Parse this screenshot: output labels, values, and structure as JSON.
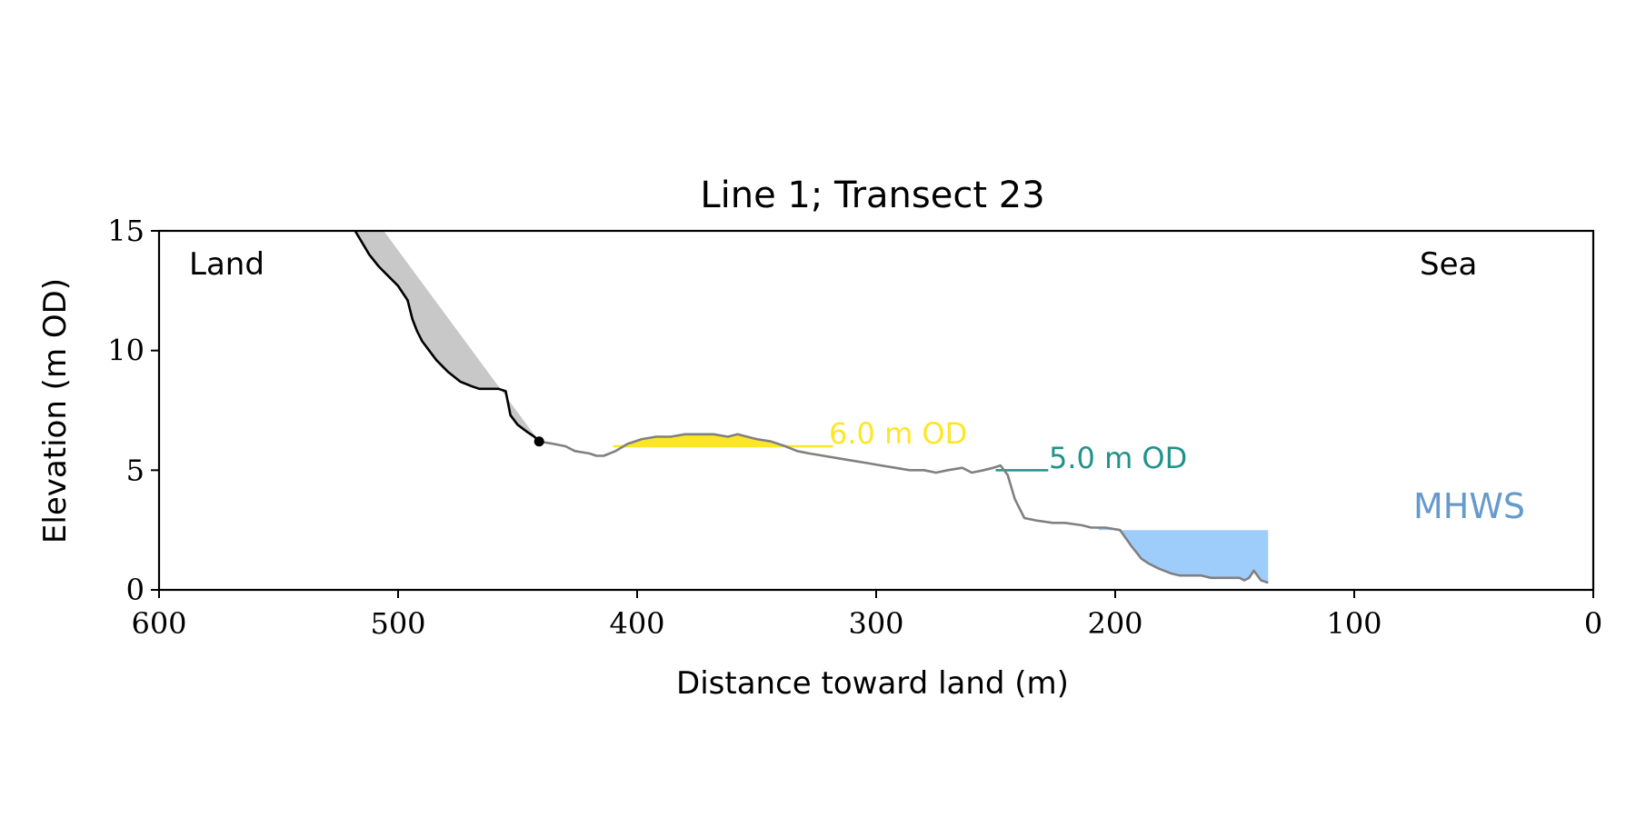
{
  "chart_data": {
    "type": "line",
    "title": "Line 1; Transect 23",
    "xlabel": "Distance toward land (m)",
    "ylabel": "Elevation (m OD)",
    "xlim": [
      600,
      0
    ],
    "ylim": [
      0,
      15
    ],
    "x_reversed": true,
    "xticks": [
      600,
      500,
      400,
      300,
      200,
      100,
      0
    ],
    "yticks": [
      0,
      5,
      10,
      15
    ],
    "grid": false,
    "annotations": {
      "land": "Land",
      "sea": "Sea",
      "mhws": "MHWS",
      "od6": "6.0 m OD",
      "od5": "5.0 m OD"
    },
    "colors": {
      "cliff_line": "#000000",
      "profile_line": "#808080",
      "cliff_fill": "#c8c8c8",
      "yellow": "#fde725",
      "teal": "#21918c",
      "mhws_fill": "#9fcdfb",
      "mhws_text": "#6699cc"
    },
    "cliff_profile": {
      "x": [
        518,
        512,
        508,
        505,
        500,
        496,
        494,
        492,
        490,
        487,
        484,
        479,
        474,
        469,
        466,
        462,
        458,
        455,
        453,
        450,
        446,
        443,
        441
      ],
      "y": [
        15.0,
        14.0,
        13.5,
        13.2,
        12.7,
        12.1,
        11.3,
        10.8,
        10.4,
        10.0,
        9.6,
        9.1,
        8.7,
        8.5,
        8.4,
        8.4,
        8.4,
        8.3,
        7.3,
        6.9,
        6.6,
        6.4,
        6.2
      ]
    },
    "cliff_toe": {
      "x": 441,
      "y": 6.2
    },
    "cliff_top_line": {
      "x": [
        506,
        441
      ],
      "y": [
        15.0,
        6.2
      ]
    },
    "beach_profile": {
      "x": [
        441,
        435,
        430,
        426,
        420,
        417,
        414,
        409,
        404,
        398,
        392,
        386,
        380,
        374,
        368,
        362,
        358,
        354,
        350,
        344,
        338,
        333,
        328,
        322,
        316,
        310,
        304,
        298,
        292,
        286,
        280,
        275,
        270,
        264,
        260,
        255,
        251,
        248,
        245,
        242,
        238,
        233,
        226,
        221,
        214,
        210,
        204,
        198,
        193,
        189,
        186,
        182,
        177,
        173,
        169,
        164,
        160,
        156,
        152,
        148,
        146,
        144,
        142,
        139,
        136
      ],
      "y": [
        6.2,
        6.1,
        6.0,
        5.8,
        5.7,
        5.6,
        5.6,
        5.8,
        6.1,
        6.3,
        6.4,
        6.4,
        6.5,
        6.5,
        6.5,
        6.4,
        6.5,
        6.4,
        6.3,
        6.2,
        6.0,
        5.8,
        5.7,
        5.6,
        5.5,
        5.4,
        5.3,
        5.2,
        5.1,
        5.0,
        5.0,
        4.9,
        5.0,
        5.1,
        4.9,
        5.0,
        5.1,
        5.2,
        4.8,
        3.8,
        3.0,
        2.9,
        2.8,
        2.8,
        2.7,
        2.6,
        2.6,
        2.5,
        1.8,
        1.3,
        1.1,
        0.9,
        0.7,
        0.6,
        0.6,
        0.6,
        0.5,
        0.5,
        0.5,
        0.5,
        0.4,
        0.5,
        0.8,
        0.4,
        0.3
      ]
    },
    "yellow_band": {
      "level": 6.0,
      "x_start": 410,
      "x_end": 338,
      "label_line_end": 318
    },
    "teal_band": {
      "level": 5.0,
      "x_start": 250,
      "x_end": 228
    },
    "mhws": {
      "level": 2.5,
      "x_start": 207,
      "x_end": 136
    }
  }
}
